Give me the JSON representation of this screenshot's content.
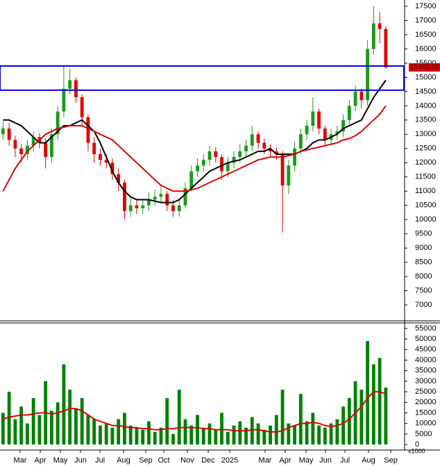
{
  "chart_data": [
    {
      "type": "candlestick",
      "x": [
        0,
        1,
        2,
        3,
        4,
        5,
        6,
        7,
        8,
        9,
        10,
        11,
        12,
        13,
        14,
        15,
        16,
        17,
        18,
        19,
        20,
        21,
        22,
        23,
        24,
        25,
        26,
        27,
        28,
        29,
        30,
        31,
        32,
        33,
        34,
        35,
        36,
        37,
        38,
        39,
        40,
        41,
        42,
        43,
        44,
        45,
        46,
        47,
        48,
        49,
        50,
        51,
        52,
        53,
        54,
        55,
        56,
        57,
        58,
        59,
        60,
        61,
        62,
        63
      ],
      "open": [
        13000,
        13200,
        12800,
        12500,
        12300,
        12600,
        12900,
        12700,
        12200,
        13000,
        13800,
        14600,
        14900,
        14300,
        13600,
        12700,
        12300,
        12100,
        12000,
        11600,
        11300,
        10300,
        10500,
        10400,
        10500,
        10700,
        10800,
        10900,
        10500,
        10300,
        10500,
        11100,
        11700,
        11900,
        12100,
        12400,
        12200,
        11700,
        12000,
        12200,
        12400,
        12600,
        13000,
        12700,
        12500,
        12400,
        12300,
        11200,
        11900,
        12500,
        13000,
        13300,
        13800,
        13200,
        12800,
        13000,
        13100,
        13500,
        14000,
        14500,
        14200,
        16000,
        16900,
        16700
      ],
      "high": [
        13450,
        13400,
        12950,
        12650,
        12800,
        13100,
        13050,
        12850,
        13200,
        14000,
        15400,
        15300,
        15000,
        14400,
        13700,
        12900,
        12500,
        12300,
        12150,
        11800,
        11400,
        10800,
        10700,
        10700,
        10950,
        11050,
        11200,
        11000,
        10700,
        10700,
        11300,
        11900,
        12150,
        12300,
        12600,
        12550,
        12300,
        12200,
        12400,
        12650,
        12800,
        13300,
        13100,
        12850,
        12650,
        12550,
        12400,
        12100,
        12750,
        13200,
        13500,
        14300,
        13900,
        13300,
        13200,
        13300,
        13700,
        14200,
        14700,
        14600,
        16300,
        17500,
        17300,
        16800
      ],
      "low": [
        12800,
        12600,
        12200,
        12000,
        12100,
        12400,
        12500,
        11800,
        12000,
        12800,
        13600,
        14400,
        14100,
        13300,
        12400,
        12000,
        11900,
        11800,
        11400,
        11000,
        10000,
        10100,
        10200,
        10200,
        10300,
        10500,
        10600,
        10300,
        10100,
        10100,
        10400,
        11000,
        11500,
        11700,
        11900,
        12000,
        11400,
        11500,
        11800,
        12000,
        12200,
        12400,
        12500,
        12300,
        12200,
        12100,
        9550,
        10900,
        11700,
        12300,
        12800,
        13100,
        13000,
        12600,
        12600,
        12800,
        12900,
        13300,
        13800,
        13900,
        14000,
        15800,
        16200,
        15300
      ],
      "close": [
        13200,
        12800,
        12500,
        12300,
        12600,
        12900,
        12700,
        12200,
        13000,
        13800,
        14600,
        14900,
        14300,
        13600,
        12700,
        12300,
        12100,
        12000,
        11600,
        11300,
        10300,
        10500,
        10400,
        10500,
        10700,
        10800,
        10900,
        10500,
        10300,
        10500,
        11100,
        11700,
        11900,
        12100,
        12400,
        12200,
        11700,
        12000,
        12200,
        12400,
        12600,
        13000,
        12700,
        12500,
        12400,
        12300,
        11200,
        11900,
        12500,
        13000,
        13300,
        13800,
        13200,
        12800,
        13000,
        13100,
        13500,
        14000,
        14500,
        14200,
        16000,
        16900,
        16700,
        15350
      ],
      "up_color": "#1a9a1a",
      "down_color": "#e00000",
      "series": [
        {
          "color": "#000000",
          "values": [
            13500,
            13500,
            13400,
            13300,
            13100,
            12900,
            12700,
            12700,
            12900,
            13100,
            13300,
            13300,
            13400,
            13500,
            13300,
            13100,
            12700,
            12200,
            11700,
            11300,
            11000,
            10800,
            10700,
            10700,
            10700,
            10650,
            10600,
            10600,
            10600,
            10700,
            10900,
            11100,
            11300,
            11500,
            11700,
            11800,
            11900,
            12000,
            12050,
            12100,
            12200,
            12300,
            12400,
            12400,
            12500,
            12300,
            12300,
            12300,
            12300,
            12400,
            12500,
            12700,
            12800,
            12800,
            12900,
            13000,
            13200,
            13300,
            13400,
            13500,
            13900,
            14300,
            14600,
            14900
          ]
        },
        {
          "color": "#e00000",
          "values": [
            11000,
            11400,
            11800,
            12100,
            12400,
            12600,
            12800,
            13000,
            13100,
            13200,
            13250,
            13300,
            13300,
            13300,
            13200,
            13100,
            13000,
            12900,
            12800,
            12600,
            12400,
            12200,
            12000,
            11800,
            11600,
            11400,
            11200,
            11100,
            11000,
            11000,
            11000,
            11050,
            11100,
            11200,
            11300,
            11400,
            11500,
            11600,
            11700,
            11800,
            11900,
            12000,
            12100,
            12150,
            12200,
            12200,
            12200,
            12250,
            12300,
            12400,
            12450,
            12500,
            12550,
            12600,
            12650,
            12700,
            12800,
            12850,
            12950,
            13100,
            13300,
            13500,
            13700,
            14000
          ]
        }
      ],
      "zone": {
        "low": 14550,
        "high": 15400,
        "color": "#0000ee"
      },
      "last_price": {
        "value": 15350,
        "label": "15350.00"
      },
      "xlim": [
        -0.5,
        66.1
      ],
      "ylim": [
        6440,
        17720
      ],
      "yticks": [
        7000,
        7500,
        8000,
        8500,
        9000,
        9500,
        10000,
        10500,
        11000,
        11500,
        12000,
        12500,
        13000,
        13500,
        14000,
        14500,
        15000,
        15500,
        16000,
        16500,
        17000,
        17500
      ]
    },
    {
      "type": "bar",
      "x": [
        0,
        1,
        2,
        3,
        4,
        5,
        6,
        7,
        8,
        9,
        10,
        11,
        12,
        13,
        14,
        15,
        16,
        17,
        18,
        19,
        20,
        21,
        22,
        23,
        24,
        25,
        26,
        27,
        28,
        29,
        30,
        31,
        32,
        33,
        34,
        35,
        36,
        37,
        38,
        39,
        40,
        41,
        42,
        43,
        44,
        45,
        46,
        47,
        48,
        49,
        50,
        51,
        52,
        53,
        54,
        55,
        56,
        57,
        58,
        59,
        60,
        61,
        62,
        63
      ],
      "values": [
        15000,
        25000,
        12000,
        18000,
        10000,
        22000,
        14000,
        30000,
        16000,
        20000,
        38000,
        26000,
        17000,
        22000,
        14000,
        12000,
        9000,
        10000,
        8000,
        12000,
        15000,
        9000,
        8000,
        7000,
        11000,
        6000,
        8000,
        22000,
        5000,
        26000,
        12000,
        9000,
        14000,
        8000,
        10000,
        7000,
        15000,
        6000,
        9000,
        11000,
        8000,
        13000,
        10000,
        7000,
        9000,
        14000,
        26000,
        10000,
        9000,
        24000,
        11000,
        15000,
        9000,
        8000,
        10000,
        12000,
        18000,
        22000,
        30000,
        26000,
        49000,
        38000,
        41000,
        27000
      ],
      "color": "#008000",
      "series": [
        {
          "color": "#e00000",
          "values": [
            12000,
            13000,
            13500,
            14000,
            14000,
            14500,
            15000,
            15000,
            14500,
            15000,
            16000,
            17000,
            17000,
            16000,
            14000,
            12000,
            11000,
            10000,
            9000,
            9000,
            8500,
            8000,
            8000,
            7500,
            7500,
            7000,
            7000,
            7500,
            7500,
            8000,
            8000,
            8000,
            8000,
            7500,
            7500,
            7000,
            7000,
            7000,
            6500,
            6500,
            6500,
            7000,
            7000,
            6500,
            6000,
            6000,
            6500,
            8000,
            9000,
            10000,
            10000,
            10500,
            10000,
            9000,
            8500,
            9000,
            10000,
            12000,
            15000,
            18000,
            22000,
            25000,
            25000,
            24000
          ]
        }
      ],
      "unit_label": "x1000",
      "xlim": [
        -0.5,
        66.1
      ],
      "ylim": [
        -2600,
        57600
      ],
      "yticks": [
        0,
        5000,
        10000,
        15000,
        20000,
        25000,
        30000,
        35000,
        40000,
        45000,
        50000,
        55000
      ],
      "xticks": [
        {
          "value": 2.81,
          "label": "Mar"
        },
        {
          "value": 6.13,
          "label": "Apr"
        },
        {
          "value": 9.44,
          "label": "May"
        },
        {
          "value": 12.75,
          "label": "Jun"
        },
        {
          "value": 15.95,
          "label": "Jul"
        },
        {
          "value": 19.83,
          "label": "Aug"
        },
        {
          "value": 23.49,
          "label": "Sep"
        },
        {
          "value": 26.46,
          "label": "Oct"
        },
        {
          "value": 30.34,
          "label": "Nov"
        },
        {
          "value": 33.77,
          "label": "Dec"
        },
        {
          "value": 37.31,
          "label": "2025"
        },
        {
          "value": 43.14,
          "label": "Mar"
        },
        {
          "value": 46.45,
          "label": "Apr"
        },
        {
          "value": 49.88,
          "label": "May"
        },
        {
          "value": 53.08,
          "label": "Jun"
        },
        {
          "value": 56.28,
          "label": "Jul"
        },
        {
          "value": 60.16,
          "label": "Aug"
        },
        {
          "value": 63.82,
          "label": "Sep"
        }
      ]
    }
  ]
}
